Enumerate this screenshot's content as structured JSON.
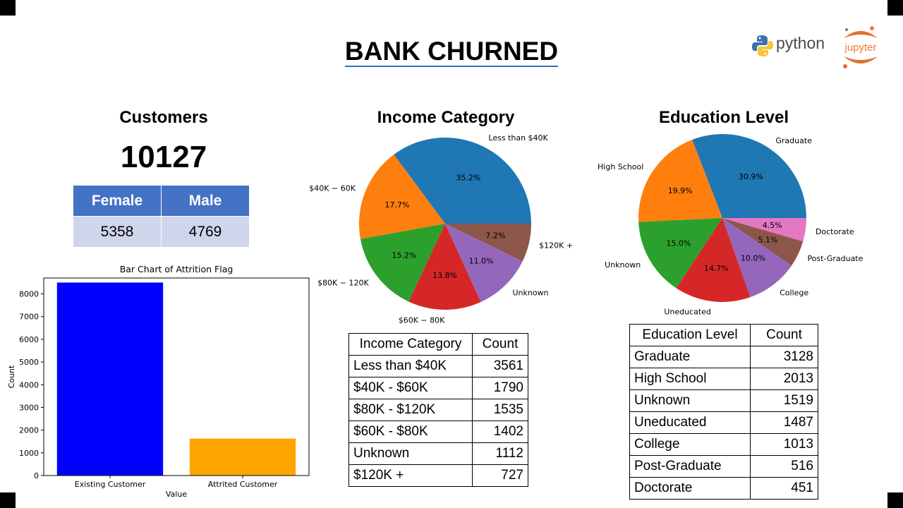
{
  "title": "BANK CHURNED",
  "logos": {
    "python": "python",
    "jupyter": "jupyter"
  },
  "customers": {
    "title": "Customers",
    "count": "10127",
    "gender_headers": [
      "Female",
      "Male"
    ],
    "gender_values": [
      "5358",
      "4769"
    ]
  },
  "income": {
    "title": "Income Category",
    "table_headers": [
      "Income Category",
      "Count"
    ],
    "rows": [
      [
        "Less than $40K",
        "3561"
      ],
      [
        "$40K - $60K",
        "1790"
      ],
      [
        "$80K - $120K",
        "1535"
      ],
      [
        "$60K - $80K",
        "1402"
      ],
      [
        "Unknown",
        "1112"
      ],
      [
        "$120K +",
        "727"
      ]
    ]
  },
  "education": {
    "title": "Education Level",
    "table_headers": [
      "Education Level",
      "Count"
    ],
    "rows": [
      [
        "Graduate",
        "3128"
      ],
      [
        "High School",
        "2013"
      ],
      [
        "Unknown",
        "1519"
      ],
      [
        "Uneducated",
        "1487"
      ],
      [
        "College",
        "1013"
      ],
      [
        "Post-Graduate",
        "516"
      ],
      [
        "Doctorate",
        "451"
      ]
    ]
  },
  "chart_data": [
    {
      "type": "bar",
      "title": "Bar Chart of Attrition Flag",
      "xlabel": "Value",
      "ylabel": "Count",
      "categories": [
        "Existing Customer",
        "Attrited Customer"
      ],
      "values": [
        8500,
        1627
      ],
      "colors": [
        "#0000ff",
        "#ffa500"
      ],
      "ylim": [
        0,
        8700
      ],
      "yticks": [
        0,
        1000,
        2000,
        3000,
        4000,
        5000,
        6000,
        7000,
        8000
      ],
      "grid": false
    },
    {
      "type": "pie",
      "title": "",
      "labels": [
        "Less than $40K",
        "$40K - $60K",
        "$80K - $120K",
        "$60K - $80K",
        "Unknown",
        "$120K +"
      ],
      "display_labels": [
        "Less than $40K",
        "$40K − 60K",
        "$80K − 120K",
        "$60K − 80K",
        "Unknown",
        "$120K +"
      ],
      "values": [
        35.2,
        17.7,
        15.2,
        13.8,
        11.0,
        7.2
      ],
      "pct_labels": [
        "35.2%",
        "17.7%",
        "15.2%",
        "13.8%",
        "11.0%",
        "7.2%"
      ],
      "colors": [
        "#1f77b4",
        "#ff7f0e",
        "#2ca02c",
        "#d62728",
        "#9467bd",
        "#8c564b"
      ]
    },
    {
      "type": "pie",
      "title": "",
      "labels": [
        "Graduate",
        "High School",
        "Unknown",
        "Uneducated",
        "College",
        "Post-Graduate",
        "Doctorate"
      ],
      "values": [
        30.9,
        19.9,
        15.0,
        14.7,
        10.0,
        5.1,
        4.5
      ],
      "pct_labels": [
        "30.9%",
        "19.9%",
        "15.0%",
        "14.7%",
        "10.0%",
        "5.1%",
        "4.5%"
      ],
      "colors": [
        "#1f77b4",
        "#ff7f0e",
        "#2ca02c",
        "#d62728",
        "#9467bd",
        "#8c564b",
        "#e377c2"
      ]
    }
  ]
}
